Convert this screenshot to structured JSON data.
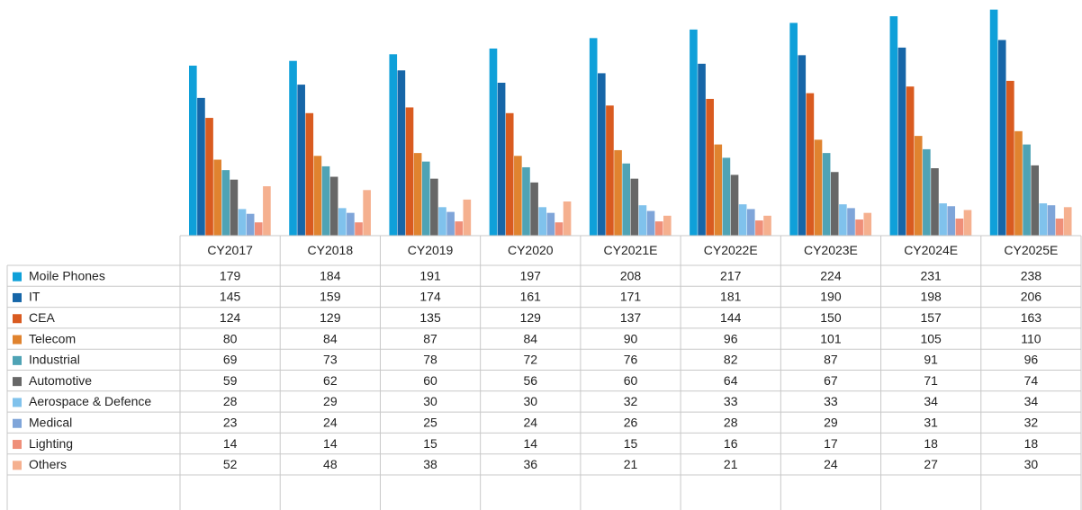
{
  "chart_data": {
    "type": "bar",
    "categories": [
      "CY2017",
      "CY2018",
      "CY2019",
      "CY2020",
      "CY2021E",
      "CY2022E",
      "CY2023E",
      "CY2024E",
      "CY2025E"
    ],
    "series": [
      {
        "name": "Moile Phones",
        "color": "#0fa0d9",
        "values": [
          179,
          184,
          191,
          197,
          208,
          217,
          224,
          231,
          238
        ]
      },
      {
        "name": "IT",
        "color": "#1666a8",
        "values": [
          145,
          159,
          174,
          161,
          171,
          181,
          190,
          198,
          206
        ]
      },
      {
        "name": "CEA",
        "color": "#d95b20",
        "values": [
          124,
          129,
          135,
          129,
          137,
          144,
          150,
          157,
          163
        ]
      },
      {
        "name": "Telecom",
        "color": "#e0832f",
        "values": [
          80,
          84,
          87,
          84,
          90,
          96,
          101,
          105,
          110
        ]
      },
      {
        "name": "Industrial",
        "color": "#4fa3b5",
        "values": [
          69,
          73,
          78,
          72,
          76,
          82,
          87,
          91,
          96
        ]
      },
      {
        "name": "Automotive",
        "color": "#676767",
        "values": [
          59,
          62,
          60,
          56,
          60,
          64,
          67,
          71,
          74
        ]
      },
      {
        "name": "Aerospace & Defence",
        "color": "#80c2ec",
        "values": [
          28,
          29,
          30,
          30,
          32,
          33,
          33,
          34,
          34
        ]
      },
      {
        "name": "Medical",
        "color": "#7fa5d9",
        "values": [
          23,
          24,
          25,
          24,
          26,
          28,
          29,
          31,
          32
        ]
      },
      {
        "name": "Lighting",
        "color": "#ef8f79",
        "values": [
          14,
          14,
          15,
          14,
          15,
          16,
          17,
          18,
          18
        ]
      },
      {
        "name": "Others",
        "color": "#f5b08f",
        "values": [
          52,
          48,
          38,
          36,
          21,
          21,
          24,
          27,
          30
        ]
      }
    ]
  }
}
